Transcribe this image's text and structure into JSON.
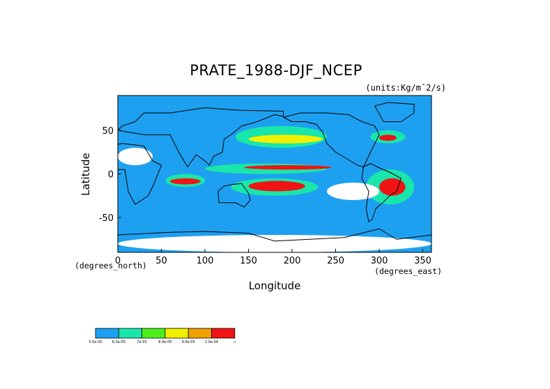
{
  "chart_data": {
    "type": "heatmap",
    "title": "PRATE_1988-DJF_NCEP",
    "units": "(units:Kg/m¯2/s)",
    "xlabel": "Longitude",
    "ylabel": "Latitude",
    "x_unit_label": "(degrees_east)",
    "y_unit_label": "(degrees_north)",
    "xlim": [
      0,
      360
    ],
    "ylim": [
      -90,
      90
    ],
    "x_ticks": [
      0,
      50,
      100,
      150,
      200,
      250,
      300,
      350
    ],
    "x_tick_labels": [
      "0",
      "50",
      "100",
      "150",
      "200",
      "250",
      "300",
      "350"
    ],
    "y_ticks": [
      50,
      0,
      -50
    ],
    "y_tick_labels": [
      "50",
      "0",
      "-50"
    ],
    "grid": false,
    "legend_placement": "bottom-left",
    "background_color": "#1ea0f0",
    "missing_color": "#ffffff",
    "color_levels": [
      {
        "label": "5.0e-05",
        "color": "#1ea0f0"
      },
      {
        "label": "6.0e-05",
        "color": "#19e6aa"
      },
      {
        "label": "7e-05",
        "color": "#4bf01e"
      },
      {
        "label": "8.0e-05",
        "color": "#f0f000"
      },
      {
        "label": "9.0e-05",
        "color": "#f0a000"
      },
      {
        "label": "1.0e-04",
        "color": "#f01414"
      }
    ],
    "legend_end_label": "∞",
    "regions": [
      {
        "level": 0,
        "lon_range": [
          0,
          360
        ],
        "lat_range": [
          -90,
          90
        ]
      },
      {
        "level": 1,
        "lon_range": [
          55,
          100
        ],
        "lat_range": [
          -15,
          0
        ]
      },
      {
        "level": 5,
        "lon_range": [
          60,
          95
        ],
        "lat_range": [
          -12,
          -5
        ]
      },
      {
        "level": 1,
        "lon_range": [
          100,
          240
        ],
        "lat_range": [
          0,
          12
        ]
      },
      {
        "level": 5,
        "lon_range": [
          145,
          245
        ],
        "lat_range": [
          5,
          10
        ]
      },
      {
        "level": 1,
        "lon_range": [
          130,
          230
        ],
        "lat_range": [
          -25,
          -5
        ]
      },
      {
        "level": 5,
        "lon_range": [
          150,
          215
        ],
        "lat_range": [
          -20,
          -8
        ]
      },
      {
        "level": 1,
        "lon_range": [
          135,
          240
        ],
        "lat_range": [
          30,
          55
        ]
      },
      {
        "level": 3,
        "lon_range": [
          150,
          235
        ],
        "lat_range": [
          35,
          45
        ]
      },
      {
        "level": 1,
        "lon_range": [
          285,
          340
        ],
        "lat_range": [
          -35,
          5
        ]
      },
      {
        "level": 5,
        "lon_range": [
          300,
          330
        ],
        "lat_range": [
          -25,
          -5
        ]
      },
      {
        "level": 1,
        "lon_range": [
          290,
          330
        ],
        "lat_range": [
          35,
          50
        ]
      },
      {
        "level": 5,
        "lon_range": [
          300,
          320
        ],
        "lat_range": [
          38,
          45
        ]
      },
      {
        "level": -1,
        "lon_range": [
          0,
          40
        ],
        "lat_range": [
          10,
          30
        ]
      },
      {
        "level": -1,
        "lon_range": [
          240,
          300
        ],
        "lat_range": [
          -30,
          -10
        ]
      },
      {
        "level": -1,
        "lon_range": [
          0,
          360
        ],
        "lat_range": [
          -90,
          -70
        ]
      }
    ]
  }
}
